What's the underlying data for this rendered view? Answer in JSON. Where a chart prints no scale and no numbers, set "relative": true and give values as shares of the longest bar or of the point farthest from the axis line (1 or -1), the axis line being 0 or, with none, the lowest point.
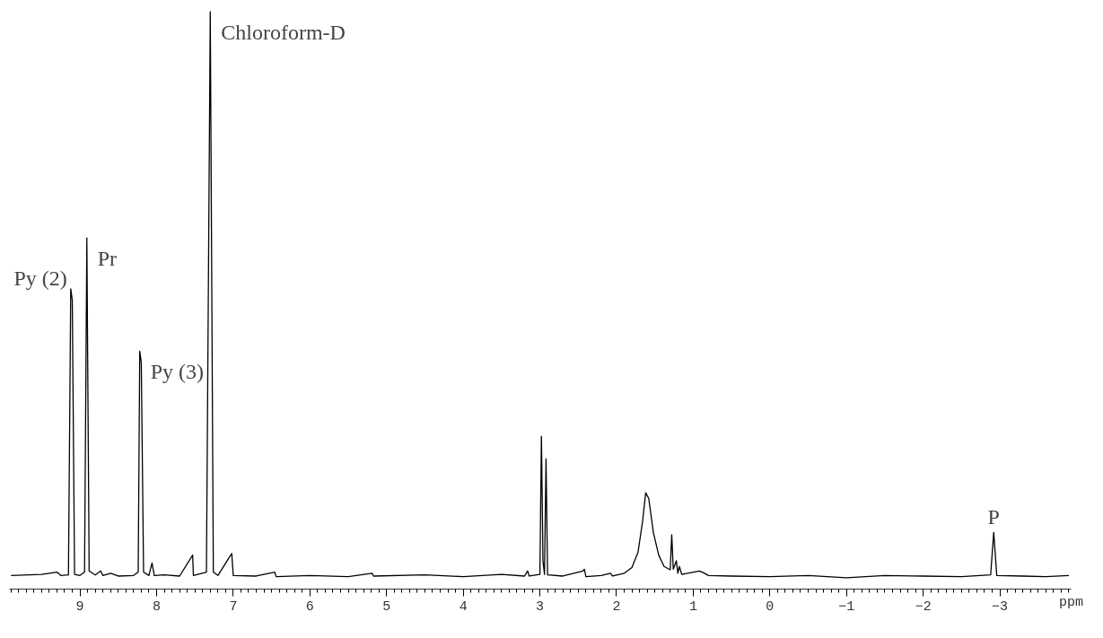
{
  "chart_data": {
    "type": "line",
    "relative": true,
    "color": "#000000",
    "line_style": "solid",
    "marker": "none",
    "grid": false,
    "xlabel": "ppm",
    "xlim": [
      9.92,
      -3.93
    ],
    "xticks": [
      {
        "value": 9,
        "label": "9"
      },
      {
        "value": 8,
        "label": "8"
      },
      {
        "value": 7,
        "label": "7"
      },
      {
        "value": 6,
        "label": "6"
      },
      {
        "value": 5,
        "label": "5"
      },
      {
        "value": 4,
        "label": "4"
      },
      {
        "value": 3,
        "label": "3"
      },
      {
        "value": 2,
        "label": "2"
      },
      {
        "value": 1,
        "label": "1"
      },
      {
        "value": 0,
        "label": "0"
      },
      {
        "value": -1,
        "label": "−1"
      },
      {
        "value": -2,
        "label": "−2"
      },
      {
        "value": -3,
        "label": "−3"
      }
    ],
    "x": [
      9.9,
      9.5,
      9.3,
      9.25,
      9.15,
      9.12,
      9.1,
      9.07,
      9.0,
      8.94,
      8.91,
      8.88,
      8.8,
      8.73,
      8.7,
      8.6,
      8.5,
      8.3,
      8.24,
      8.22,
      8.2,
      8.17,
      8.1,
      8.06,
      8.03,
      7.9,
      7.7,
      7.53,
      7.52,
      7.35,
      7.3,
      7.26,
      7.2,
      7.02,
      7.0,
      6.7,
      6.46,
      6.44,
      6.0,
      5.5,
      5.19,
      5.17,
      4.5,
      4.0,
      3.5,
      3.2,
      3.16,
      3.14,
      3.0,
      2.98,
      2.96,
      2.94,
      2.92,
      2.9,
      2.7,
      2.44,
      2.42,
      2.4,
      2.2,
      2.08,
      2.05,
      1.9,
      1.8,
      1.72,
      1.66,
      1.62,
      1.58,
      1.52,
      1.45,
      1.38,
      1.3,
      1.28,
      1.26,
      1.22,
      1.2,
      1.18,
      1.15,
      0.92,
      0.88,
      0.8,
      0.5,
      0.0,
      -0.5,
      -1.0,
      -1.5,
      -2.0,
      -2.5,
      -2.88,
      -2.92,
      -2.96,
      -3.3,
      -3.6,
      -3.9
    ],
    "values": [
      0.004,
      0.006,
      0.01,
      0.004,
      0.005,
      0.51,
      0.49,
      0.006,
      0.004,
      0.01,
      0.6,
      0.012,
      0.005,
      0.012,
      0.004,
      0.008,
      0.003,
      0.004,
      0.01,
      0.4,
      0.38,
      0.01,
      0.004,
      0.026,
      0.004,
      0.005,
      0.003,
      0.04,
      0.004,
      0.01,
      1.0,
      0.01,
      0.004,
      0.043,
      0.004,
      0.003,
      0.01,
      0.002,
      0.004,
      0.002,
      0.008,
      0.003,
      0.005,
      0.002,
      0.006,
      0.003,
      0.012,
      0.003,
      0.006,
      0.25,
      0.03,
      0.006,
      0.21,
      0.005,
      0.003,
      0.012,
      0.015,
      0.002,
      0.004,
      0.008,
      0.003,
      0.008,
      0.018,
      0.045,
      0.1,
      0.15,
      0.14,
      0.08,
      0.04,
      0.02,
      0.014,
      0.076,
      0.015,
      0.03,
      0.008,
      0.02,
      0.006,
      0.012,
      0.01,
      0.004,
      0.003,
      0.002,
      0.004,
      0.0,
      0.004,
      0.003,
      0.002,
      0.005,
      0.08,
      0.004,
      0.003,
      0.002,
      0.004
    ],
    "annotations": [
      {
        "text": "Py (2)",
        "x": 9.12,
        "y": 0.51
      },
      {
        "text": "Pr",
        "x": 8.91,
        "y": 0.6
      },
      {
        "text": "Py (3)",
        "x": 8.22,
        "y": 0.4
      },
      {
        "text": "Chloroform-D",
        "x": 7.3,
        "y": 1.0
      },
      {
        "text": "P",
        "x": -2.92,
        "y": 0.08
      }
    ]
  }
}
